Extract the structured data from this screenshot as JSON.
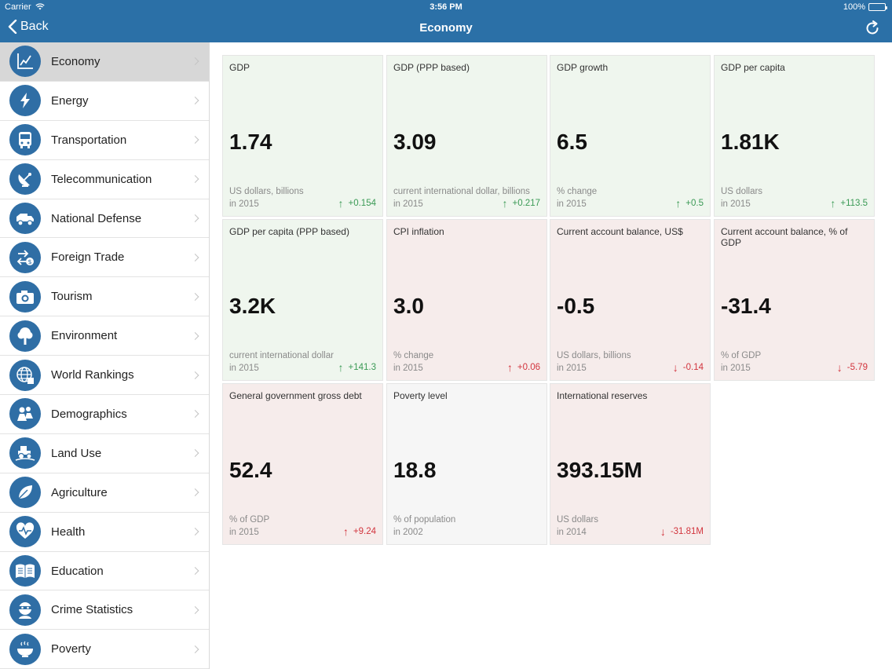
{
  "status": {
    "carrier": "Carrier",
    "time": "3:56 PM",
    "battery": "100%"
  },
  "nav": {
    "back_label": "Back",
    "title": "Economy"
  },
  "sidebar": {
    "items": [
      {
        "label": "Economy",
        "icon": "chart-icon"
      },
      {
        "label": "Energy",
        "icon": "lightning-icon"
      },
      {
        "label": "Transportation",
        "icon": "bus-icon"
      },
      {
        "label": "Telecommunication",
        "icon": "satellite-dish-icon"
      },
      {
        "label": "National Defense",
        "icon": "military-truck-icon"
      },
      {
        "label": "Foreign Trade",
        "icon": "exchange-icon"
      },
      {
        "label": "Tourism",
        "icon": "camera-icon"
      },
      {
        "label": "Environment",
        "icon": "tree-icon"
      },
      {
        "label": "World Rankings",
        "icon": "globe-icon"
      },
      {
        "label": "Demographics",
        "icon": "people-icon"
      },
      {
        "label": "Land Use",
        "icon": "tractor-icon"
      },
      {
        "label": "Agriculture",
        "icon": "leaf-icon"
      },
      {
        "label": "Health",
        "icon": "heart-icon"
      },
      {
        "label": "Education",
        "icon": "book-icon"
      },
      {
        "label": "Crime Statistics",
        "icon": "robber-icon"
      },
      {
        "label": "Poverty",
        "icon": "bowl-icon"
      }
    ]
  },
  "cards": [
    {
      "title": "GDP",
      "value": "1.74",
      "unit": "US dollars, billions",
      "year": "in 2015",
      "change": "+0.154",
      "direction": "up",
      "tone": "green"
    },
    {
      "title": "GDP (PPP based)",
      "value": "3.09",
      "unit": "current international dollar, billions",
      "year": "in 2015",
      "change": "+0.217",
      "direction": "up",
      "tone": "green"
    },
    {
      "title": "GDP growth",
      "value": "6.5",
      "unit": "% change",
      "year": "in 2015",
      "change": "+0.5",
      "direction": "up",
      "tone": "green"
    },
    {
      "title": "GDP per capita",
      "value": "1.81K",
      "unit": "US dollars",
      "year": "in 2015",
      "change": "+113.5",
      "direction": "up",
      "tone": "green"
    },
    {
      "title": "GDP per capita (PPP based)",
      "value": "3.2K",
      "unit": "current international dollar",
      "year": "in 2015",
      "change": "+141.3",
      "direction": "up",
      "tone": "green"
    },
    {
      "title": "CPI inflation",
      "value": "3.0",
      "unit": "% change",
      "year": "in 2015",
      "change": "+0.06",
      "direction": "up-red",
      "tone": "red"
    },
    {
      "title": "Current account balance, US$",
      "value": "-0.5",
      "unit": "US dollars, billions",
      "year": "in 2015",
      "change": "-0.14",
      "direction": "down",
      "tone": "red"
    },
    {
      "title": "Current account balance, % of GDP",
      "value": "-31.4",
      "unit": "% of GDP",
      "year": "in 2015",
      "change": "-5.79",
      "direction": "down",
      "tone": "red"
    },
    {
      "title": "General government gross debt",
      "value": "52.4",
      "unit": "% of GDP",
      "year": "in 2015",
      "change": "+9.24",
      "direction": "up-red",
      "tone": "red"
    },
    {
      "title": "Poverty level",
      "value": "18.8",
      "unit": "% of population",
      "year": "in 2002",
      "change": "",
      "direction": "none",
      "tone": "gray"
    },
    {
      "title": "International reserves",
      "value": "393.15M",
      "unit": "US dollars",
      "year": "in 2014",
      "change": "-31.81M",
      "direction": "down",
      "tone": "red"
    }
  ],
  "colors": {
    "header": "#2b70a7",
    "icon_bg": "#2f6ea5",
    "up": "#3a9a55",
    "down": "#d2343d"
  }
}
